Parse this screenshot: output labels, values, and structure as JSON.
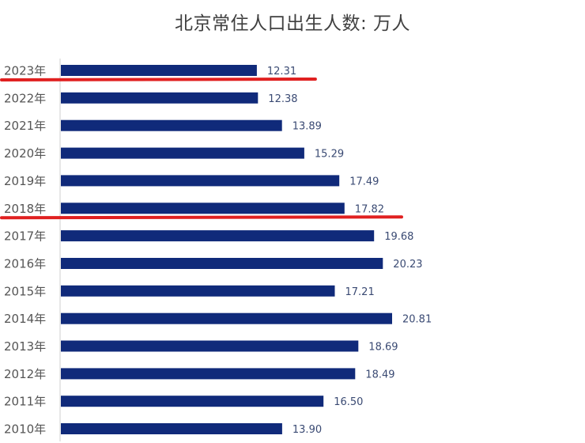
{
  "chart_data": {
    "type": "bar",
    "orientation": "horizontal",
    "title": "北京常住人口出生人数: 万人",
    "xlabel": "",
    "ylabel": "",
    "categories": [
      "2023年",
      "2022年",
      "2021年",
      "2020年",
      "2019年",
      "2018年",
      "2017年",
      "2016年",
      "2015年",
      "2014年",
      "2013年",
      "2012年",
      "2011年",
      "2010年"
    ],
    "values": [
      12.31,
      12.38,
      13.89,
      15.29,
      17.49,
      17.82,
      19.68,
      20.23,
      17.21,
      20.81,
      18.69,
      18.49,
      16.5,
      13.9
    ],
    "value_labels": [
      "12.31",
      "12.38",
      "13.89",
      "15.29",
      "17.49",
      "17.82",
      "19.68",
      "20.23",
      "17.21",
      "20.81",
      "18.69",
      "18.49",
      "16.50",
      "13.90"
    ],
    "xlim": [
      0,
      20.81
    ],
    "grid": false,
    "bar_color": "#102a7a",
    "highlighted_categories": [
      "2023年",
      "2018年"
    ],
    "highlight_color": "#e02020"
  }
}
